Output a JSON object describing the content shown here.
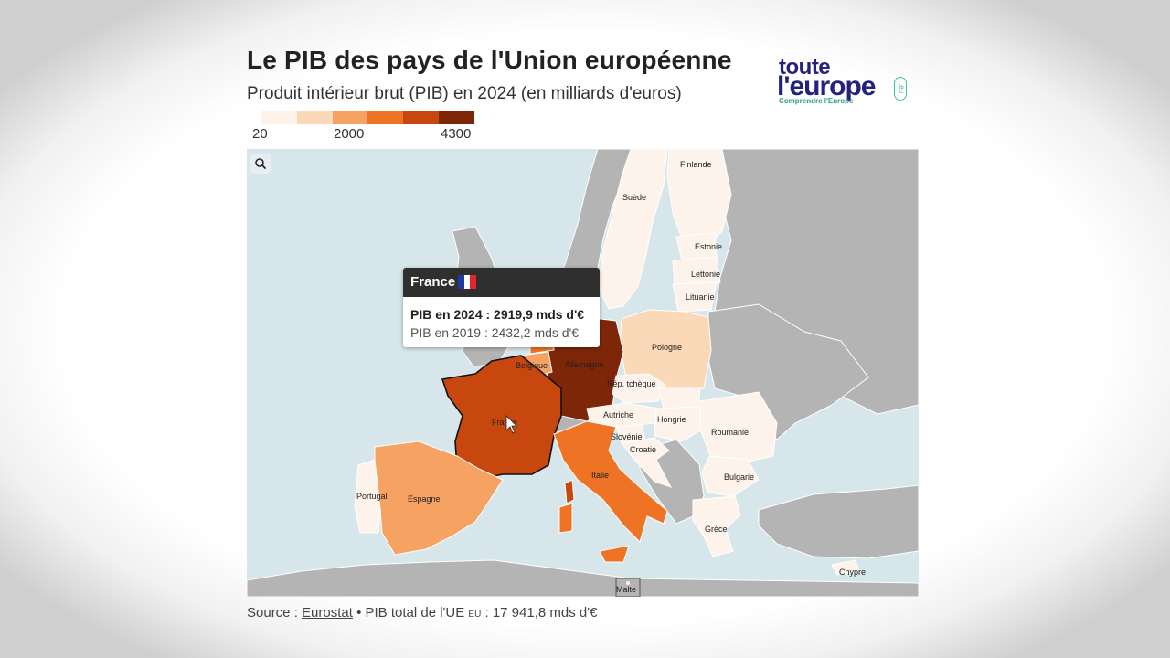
{
  "header": {
    "title": "Le PIB des pays de l'Union européenne",
    "subtitle": "Produit intérieur brut (PIB) en 2024 (en milliards d'euros)"
  },
  "logo": {
    "line1": "toute",
    "line2": "l'europe",
    "eu": ".eu",
    "tagline": "Comprendre l'Europe"
  },
  "legend": {
    "min_label": "20",
    "mid_label": "2000",
    "max_label": "4300",
    "colors": [
      "#fdf3ea",
      "#fbd8b8",
      "#f5a262",
      "#ef7325",
      "#c7470f",
      "#7d2608"
    ]
  },
  "map": {
    "zoom_icon": "search-icon",
    "colors": {
      "sea": "#d6e6ea",
      "non_eu": "#b4b4b4",
      "lowest": "#fdf3ea",
      "low": "#fbd8b8",
      "mid": "#f5a262",
      "high": "#ef7325",
      "very_high": "#c7470f",
      "top": "#7d2608"
    },
    "countries": {
      "finlande": "Finlande",
      "suede": "Suède",
      "estonie": "Estonie",
      "lettonie": "Lettonie",
      "lituanie": "Lituanie",
      "pologne": "Pologne",
      "allemagne": "Allemagne",
      "belgique": "Belgique",
      "rep_tcheque": "Rép. tchèque",
      "autriche": "Autriche",
      "hongrie": "Hongrie",
      "roumanie": "Roumanie",
      "slovenie": "Slovénie",
      "croatie": "Croatie",
      "bulgarie": "Bulgarie",
      "france": "France",
      "italie": "Italie",
      "portugal": "Portugal",
      "espagne": "Espagne",
      "grece": "Grèce",
      "malte": "Malte",
      "chypre": "Chypre"
    }
  },
  "tooltip": {
    "country": "France",
    "flag_colors": [
      "#1f3c9c",
      "#ffffff",
      "#e0252b"
    ],
    "pib_2024": "PIB en 2024 : 2919,9 mds d'€",
    "pib_2019": "PIB en 2019 : 2432,2 mds d'€"
  },
  "footer": {
    "source_prefix": "Source : ",
    "source_link": "Eurostat",
    "total_prefix": " • PIB total de l'UE ",
    "total_eu": "EU",
    "total_value": " : 17 941,8 mds d'€"
  }
}
